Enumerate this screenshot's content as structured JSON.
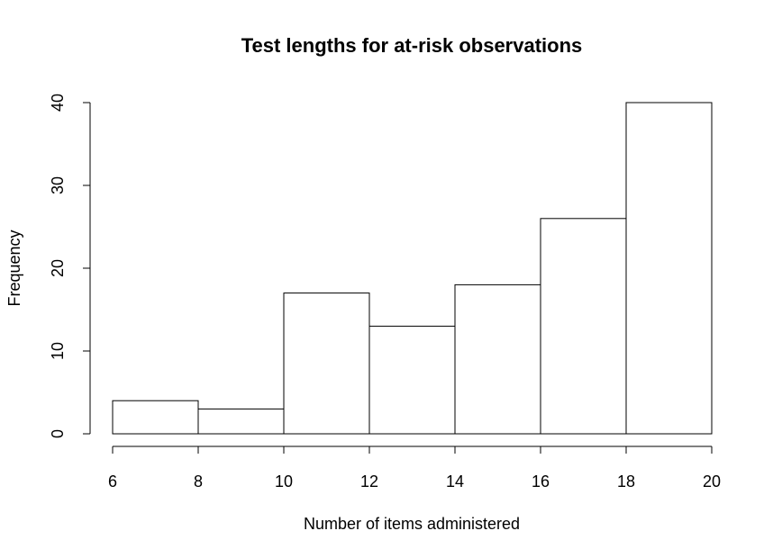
{
  "chart_data": {
    "type": "bar",
    "subtype": "histogram",
    "title": "Test lengths for at-risk observations",
    "xlabel": "Number of items administered",
    "ylabel": "Frequency",
    "bins": [
      {
        "start": 6,
        "end": 8,
        "value": 4
      },
      {
        "start": 8,
        "end": 10,
        "value": 3
      },
      {
        "start": 10,
        "end": 12,
        "value": 17
      },
      {
        "start": 12,
        "end": 14,
        "value": 13
      },
      {
        "start": 14,
        "end": 16,
        "value": 18
      },
      {
        "start": 16,
        "end": 18,
        "value": 26
      },
      {
        "start": 18,
        "end": 20,
        "value": 40
      }
    ],
    "xlim": [
      6,
      20
    ],
    "ylim": [
      0,
      40
    ],
    "xticks": [
      "6",
      "8",
      "10",
      "12",
      "14",
      "16",
      "18",
      "20"
    ],
    "yticks": [
      "0",
      "10",
      "20",
      "30",
      "40"
    ],
    "grid": false,
    "legend": "none",
    "colors": {
      "bar_fill": "#ffffff",
      "bar_stroke": "#000000",
      "axis": "#000000",
      "background": "#ffffff"
    }
  }
}
